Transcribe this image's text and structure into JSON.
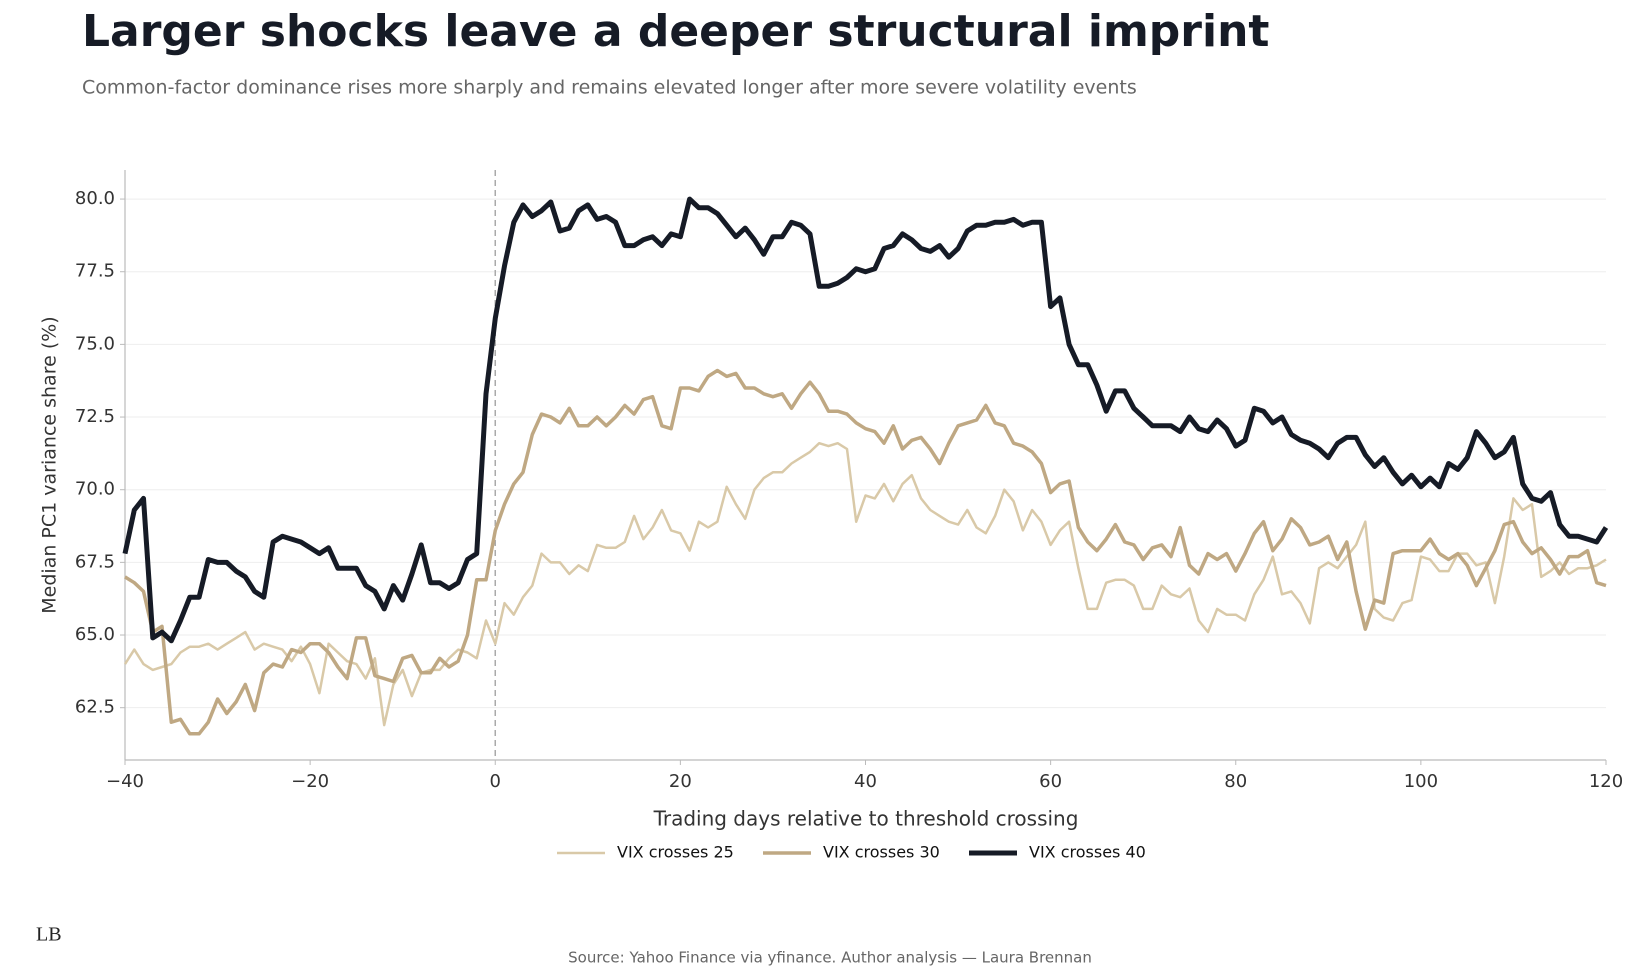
{
  "chart_data": {
    "type": "line",
    "title": "Larger shocks leave a deeper structural imprint",
    "subtitle": "Common-factor dominance rises more sharply and remains elevated longer after more severe volatility events",
    "xlabel": "Trading days relative to threshold crossing",
    "ylabel": "Median PC1 variance share (%)",
    "source": "Source: Yahoo Finance via yfinance. Author analysis — Laura Brennan",
    "logo": "LB",
    "vline": 0,
    "grid": true,
    "legend": "bottom",
    "xlim": [
      -40,
      120
    ],
    "ylim": [
      60.7,
      81.0
    ],
    "xticks": [
      {
        "value": -40,
        "label": "−40"
      },
      {
        "value": -20,
        "label": "−20"
      },
      0,
      20,
      40,
      60,
      80,
      100,
      120
    ],
    "yticks": [
      62.5,
      {
        "value": 65,
        "label": "65.0"
      },
      67.5,
      {
        "value": 70,
        "label": "70.0"
      },
      72.5,
      {
        "value": 75,
        "label": "75.0"
      },
      77.5,
      {
        "value": 80,
        "label": "80.0"
      }
    ],
    "x": [
      -40,
      -39,
      -38,
      -37,
      -36,
      -35,
      -34,
      -33,
      -32,
      -31,
      -30,
      -29,
      -28,
      -27,
      -26,
      -25,
      -24,
      -23,
      -22,
      -21,
      -20,
      -19,
      -18,
      -17,
      -16,
      -15,
      -14,
      -13,
      -12,
      -11,
      -10,
      -9,
      -8,
      -7,
      -6,
      -5,
      -4,
      -3,
      -2,
      -1,
      0,
      1,
      2,
      3,
      4,
      5,
      6,
      7,
      8,
      9,
      10,
      11,
      12,
      13,
      14,
      15,
      16,
      17,
      18,
      19,
      20,
      21,
      22,
      23,
      24,
      25,
      26,
      27,
      28,
      29,
      30,
      31,
      32,
      33,
      34,
      35,
      36,
      37,
      38,
      39,
      40,
      41,
      42,
      43,
      44,
      45,
      46,
      47,
      48,
      49,
      50,
      51,
      52,
      53,
      54,
      55,
      56,
      57,
      58,
      59,
      60,
      61,
      62,
      63,
      64,
      65,
      66,
      67,
      68,
      69,
      70,
      71,
      72,
      73,
      74,
      75,
      76,
      77,
      78,
      79,
      80,
      81,
      82,
      83,
      84,
      85,
      86,
      87,
      88,
      89,
      90,
      91,
      92,
      93,
      94,
      95,
      96,
      97,
      98,
      99,
      100,
      101,
      102,
      103,
      104,
      105,
      106,
      107,
      108,
      109,
      110,
      111,
      112,
      113,
      114,
      115,
      116,
      117,
      118,
      119,
      120
    ],
    "series": [
      {
        "name": "VIX crosses 25",
        "color": "#d9c9a8",
        "width": 2.5,
        "values": [
          64.0,
          64.5,
          64.0,
          63.8,
          63.9,
          64.0,
          64.4,
          64.6,
          64.6,
          64.7,
          64.5,
          64.7,
          64.9,
          65.1,
          64.5,
          64.7,
          64.6,
          64.5,
          64.1,
          64.6,
          64.0,
          63.0,
          64.7,
          64.4,
          64.1,
          64.0,
          63.5,
          64.2,
          61.9,
          63.3,
          63.8,
          62.9,
          63.7,
          63.8,
          63.8,
          64.2,
          64.5,
          64.4,
          64.2,
          65.5,
          64.7,
          66.1,
          65.7,
          66.3,
          66.7,
          67.8,
          67.5,
          67.5,
          67.1,
          67.4,
          67.2,
          68.1,
          68.0,
          68.0,
          68.2,
          69.1,
          68.3,
          68.7,
          69.3,
          68.6,
          68.5,
          67.9,
          68.9,
          68.7,
          68.9,
          70.1,
          69.5,
          69.0,
          70.0,
          70.4,
          70.6,
          70.6,
          70.9,
          71.1,
          71.3,
          71.6,
          71.5,
          71.6,
          71.4,
          68.9,
          69.8,
          69.7,
          70.2,
          69.6,
          70.2,
          70.5,
          69.7,
          69.3,
          69.1,
          68.9,
          68.8,
          69.3,
          68.7,
          68.5,
          69.1,
          70.0,
          69.6,
          68.6,
          69.3,
          68.9,
          68.1,
          68.6,
          68.9,
          67.3,
          65.9,
          65.9,
          66.8,
          66.9,
          66.9,
          66.7,
          65.9,
          65.9,
          66.7,
          66.4,
          66.3,
          66.6,
          65.5,
          65.1,
          65.9,
          65.7,
          65.7,
          65.5,
          66.4,
          66.9,
          67.7,
          66.4,
          66.5,
          66.1,
          65.4,
          67.3,
          67.5,
          67.3,
          67.7,
          68.1,
          68.9,
          65.9,
          65.6,
          65.5,
          66.1,
          66.2,
          67.7,
          67.6,
          67.2,
          67.2,
          67.8,
          67.8,
          67.4,
          67.5,
          66.1,
          67.7,
          69.7,
          69.3,
          69.5,
          67.0,
          67.2,
          67.5,
          67.1,
          67.3,
          67.3,
          67.4,
          67.6
        ]
      },
      {
        "name": "VIX crosses 30",
        "color": "#bfa883",
        "width": 3.5,
        "values": [
          67.0,
          66.8,
          66.5,
          65.1,
          65.3,
          62.0,
          62.1,
          61.6,
          61.6,
          62.0,
          62.8,
          62.3,
          62.7,
          63.3,
          62.4,
          63.7,
          64.0,
          63.9,
          64.5,
          64.4,
          64.7,
          64.7,
          64.4,
          63.9,
          63.5,
          64.9,
          64.9,
          63.6,
          63.5,
          63.4,
          64.2,
          64.3,
          63.7,
          63.7,
          64.2,
          63.9,
          64.1,
          65.0,
          66.9,
          66.9,
          68.6,
          69.5,
          70.2,
          70.6,
          71.9,
          72.6,
          72.5,
          72.3,
          72.8,
          72.2,
          72.2,
          72.5,
          72.2,
          72.5,
          72.9,
          72.6,
          73.1,
          73.2,
          72.2,
          72.1,
          73.5,
          73.5,
          73.4,
          73.9,
          74.1,
          73.9,
          74.0,
          73.5,
          73.5,
          73.3,
          73.2,
          73.3,
          72.8,
          73.3,
          73.7,
          73.3,
          72.7,
          72.7,
          72.6,
          72.3,
          72.1,
          72.0,
          71.6,
          72.2,
          71.4,
          71.7,
          71.8,
          71.4,
          70.9,
          71.6,
          72.2,
          72.3,
          72.4,
          72.9,
          72.3,
          72.2,
          71.6,
          71.5,
          71.3,
          70.9,
          69.9,
          70.2,
          70.3,
          68.7,
          68.2,
          67.9,
          68.3,
          68.8,
          68.2,
          68.1,
          67.6,
          68.0,
          68.1,
          67.7,
          68.7,
          67.4,
          67.1,
          67.8,
          67.6,
          67.8,
          67.2,
          67.8,
          68.5,
          68.9,
          67.9,
          68.3,
          69.0,
          68.7,
          68.1,
          68.2,
          68.4,
          67.6,
          68.2,
          66.5,
          65.2,
          66.2,
          66.1,
          67.8,
          67.9,
          67.9,
          67.9,
          68.3,
          67.8,
          67.6,
          67.8,
          67.4,
          66.7,
          67.3,
          67.9,
          68.8,
          68.9,
          68.2,
          67.8,
          68.0,
          67.6,
          67.1,
          67.7,
          67.7,
          67.9,
          66.8,
          66.7
        ]
      },
      {
        "name": "VIX crosses 40",
        "color": "#161b26",
        "width": 5,
        "values": [
          67.8,
          69.3,
          69.7,
          64.9,
          65.1,
          64.8,
          65.5,
          66.3,
          66.3,
          67.6,
          67.5,
          67.5,
          67.2,
          67.0,
          66.5,
          66.3,
          68.2,
          68.4,
          68.3,
          68.2,
          68.0,
          67.8,
          68.0,
          67.3,
          67.3,
          67.3,
          66.7,
          66.5,
          65.9,
          66.7,
          66.2,
          67.1,
          68.1,
          66.8,
          66.8,
          66.6,
          66.8,
          67.6,
          67.8,
          73.3,
          75.9,
          77.7,
          79.2,
          79.8,
          79.4,
          79.6,
          79.9,
          78.9,
          79.0,
          79.6,
          79.8,
          79.3,
          79.4,
          79.2,
          78.4,
          78.4,
          78.6,
          78.7,
          78.4,
          78.8,
          78.7,
          80.0,
          79.7,
          79.7,
          79.5,
          79.1,
          78.7,
          79.0,
          78.6,
          78.1,
          78.7,
          78.7,
          79.2,
          79.1,
          78.8,
          77.0,
          77.0,
          77.1,
          77.3,
          77.6,
          77.5,
          77.6,
          78.3,
          78.4,
          78.8,
          78.6,
          78.3,
          78.2,
          78.4,
          78.0,
          78.3,
          78.9,
          79.1,
          79.1,
          79.2,
          79.2,
          79.3,
          79.1,
          79.2,
          79.2,
          76.3,
          76.6,
          75.0,
          74.3,
          74.3,
          73.6,
          72.7,
          73.4,
          73.4,
          72.8,
          72.5,
          72.2,
          72.2,
          72.2,
          72.0,
          72.5,
          72.1,
          72.0,
          72.4,
          72.1,
          71.5,
          71.7,
          72.8,
          72.7,
          72.3,
          72.5,
          71.9,
          71.7,
          71.6,
          71.4,
          71.1,
          71.6,
          71.8,
          71.8,
          71.2,
          70.8,
          71.1,
          70.6,
          70.2,
          70.5,
          70.1,
          70.4,
          70.1,
          70.9,
          70.7,
          71.1,
          72.0,
          71.6,
          71.1,
          71.3,
          71.8,
          70.2,
          69.7,
          69.6,
          69.9,
          68.8,
          68.4,
          68.4,
          68.3,
          68.2,
          68.7
        ]
      }
    ]
  }
}
